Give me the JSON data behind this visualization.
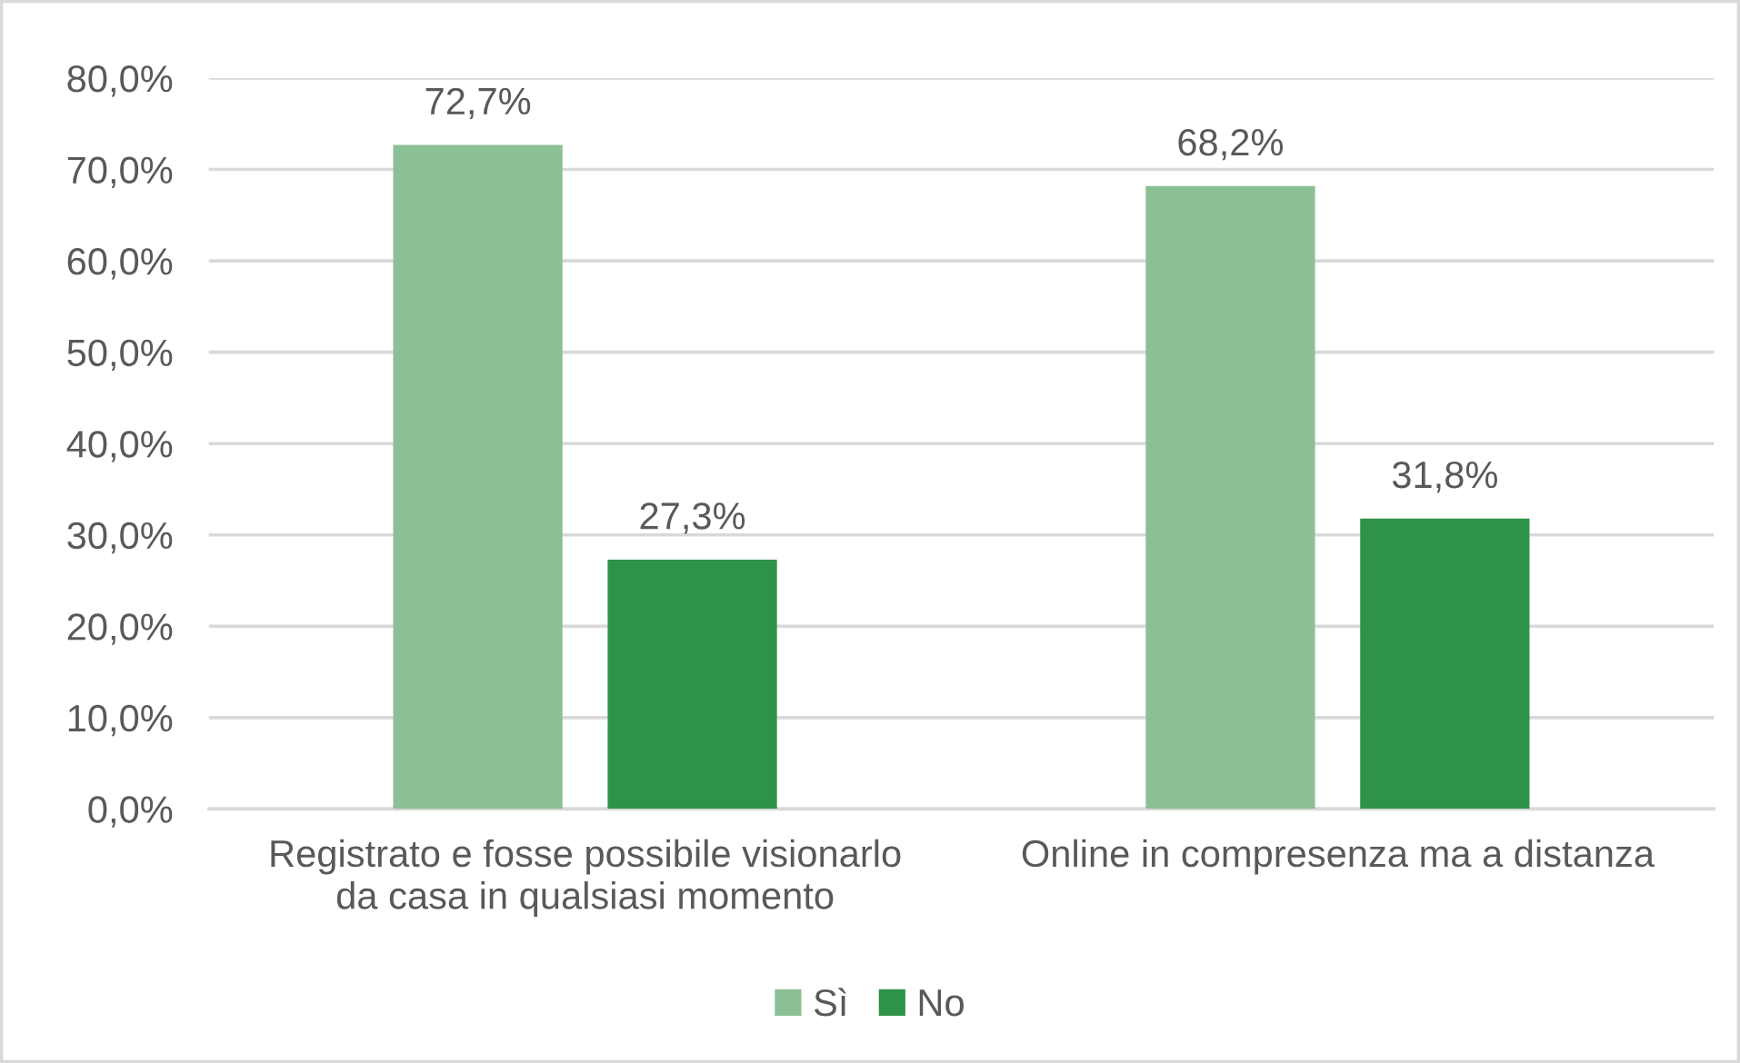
{
  "chart_data": {
    "type": "bar",
    "categories": [
      "Registrato e fosse possibile visionarlo\nda casa in qualsiasi momento",
      "Online in compresenza ma a distanza"
    ],
    "series": [
      {
        "name": "Sì",
        "color": "#8bc094",
        "values": [
          72.7,
          68.2
        ],
        "value_labels": [
          "72,7%",
          "68,2%"
        ]
      },
      {
        "name": "No",
        "color": "#2e9248",
        "values": [
          27.3,
          31.8
        ],
        "value_labels": [
          "27,3%",
          "31,8%"
        ]
      }
    ],
    "ylim": [
      0,
      80
    ],
    "yticks": [
      {
        "value": 0,
        "label": "0,0%"
      },
      {
        "value": 10,
        "label": "10,0%"
      },
      {
        "value": 20,
        "label": "20,0%"
      },
      {
        "value": 30,
        "label": "30,0%"
      },
      {
        "value": 40,
        "label": "40,0%"
      },
      {
        "value": 50,
        "label": "50,0%"
      },
      {
        "value": 60,
        "label": "60,0%"
      },
      {
        "value": 70,
        "label": "70,0%"
      },
      {
        "value": 80,
        "label": "80,0%"
      }
    ],
    "grid": "y",
    "legend": "bottom"
  }
}
